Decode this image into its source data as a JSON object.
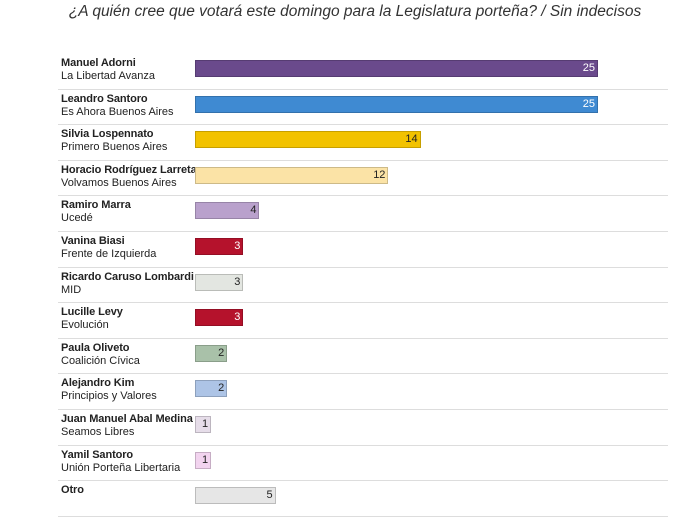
{
  "chart_data": {
    "type": "bar",
    "orientation": "horizontal",
    "title": "¿A quién cree que votará este domingo para la Legislatura porteña? / Sin indecisos",
    "xlim": [
      0,
      25
    ],
    "grid": false,
    "legend": "none",
    "rows": [
      {
        "candidate": "Manuel Adorni",
        "party": "La Libertad Avanza",
        "value": 25,
        "color": "#6a4a8c",
        "label_color": "#ffffff"
      },
      {
        "candidate": "Leandro Santoro",
        "party": "Es Ahora Buenos Aires",
        "value": 25,
        "color": "#3f8ad2",
        "label_color": "#ffffff"
      },
      {
        "candidate": "Silvia Lospennato",
        "party": "Primero Buenos Aires",
        "value": 14,
        "color": "#f2c200",
        "label_color": "#222222"
      },
      {
        "candidate": "Horacio Rodríguez Larreta",
        "party": "Volvamos Buenos Aires",
        "value": 12,
        "color": "#fbe3a6",
        "label_color": "#222222"
      },
      {
        "candidate": "Ramiro Marra",
        "party": "Ucedé",
        "value": 4,
        "color": "#b9a1cc",
        "label_color": "#222222"
      },
      {
        "candidate": "Vanina Biasi",
        "party": "Frente de Izquierda",
        "value": 3,
        "color": "#b5122c",
        "label_color": "#ffffff"
      },
      {
        "candidate": "Ricardo Caruso Lombardi",
        "party": "MID",
        "value": 3,
        "color": "#e3e6e1",
        "label_color": "#222222"
      },
      {
        "candidate": "Lucille Levy",
        "party": "Evolución",
        "value": 3,
        "color": "#b5122c",
        "label_color": "#ffffff"
      },
      {
        "candidate": "Paula Oliveto",
        "party": "Coalición Cívica",
        "value": 2,
        "color": "#a9c1a9",
        "label_color": "#222222"
      },
      {
        "candidate": "Alejandro Kim",
        "party": "Principios y Valores",
        "value": 2,
        "color": "#adc4e6",
        "label_color": "#222222"
      },
      {
        "candidate": "Juan Manuel Abal Medina",
        "party": "Seamos Libres",
        "value": 1,
        "color": "#e6dde9",
        "label_color": "#222222"
      },
      {
        "candidate": "Yamil Santoro",
        "party": "Unión Porteña Libertaria",
        "value": 1,
        "color": "#f2d4ef",
        "label_color": "#222222"
      },
      {
        "candidate": "Otro",
        "party": "",
        "value": 5,
        "color": "#e6e6e6",
        "label_color": "#222222"
      }
    ]
  }
}
